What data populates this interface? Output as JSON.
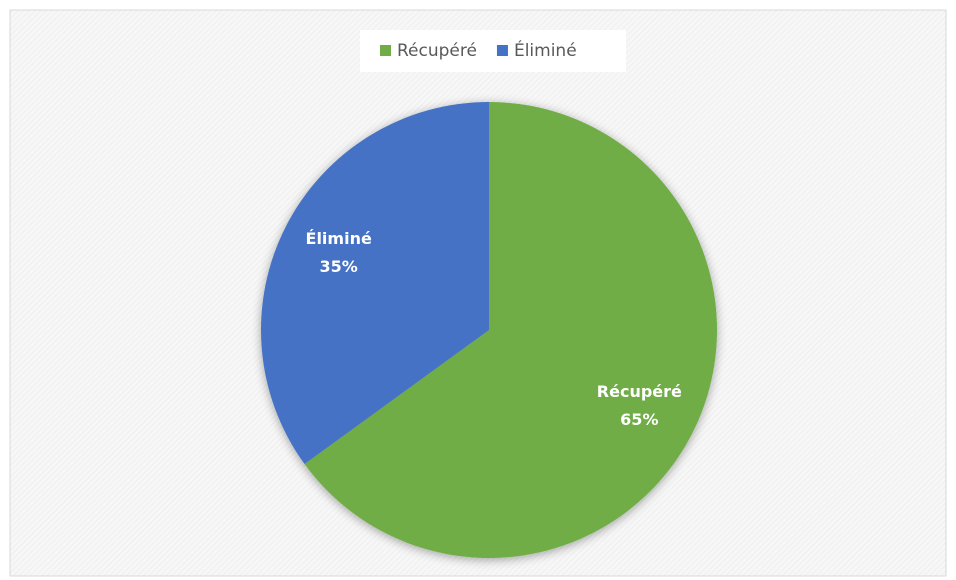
{
  "chart_data": {
    "type": "pie",
    "categories": [
      "Récupéré",
      "Éliminé"
    ],
    "values": [
      65,
      35
    ],
    "value_labels": [
      "65%",
      "35%"
    ],
    "colors": [
      "#70ad47",
      "#4472c4"
    ],
    "legend": "top"
  }
}
